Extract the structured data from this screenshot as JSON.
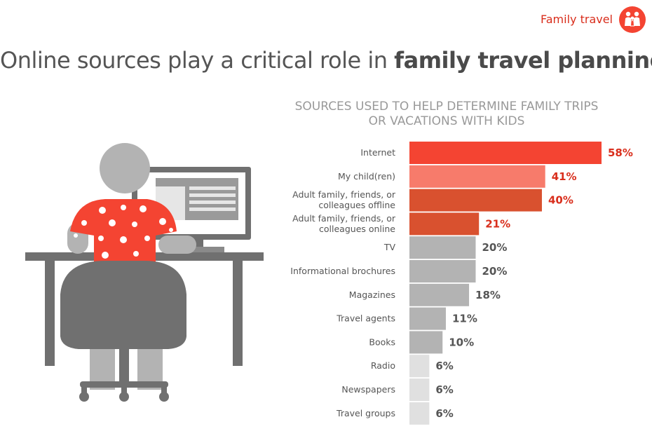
{
  "header": {
    "tag": "Family travel",
    "title_regular": "Online sources play a critical role in ",
    "title_bold": "family travel planning"
  },
  "colors": {
    "accent": "#f44432",
    "light_red": "#f77b6b",
    "dark_red": "#d9512f",
    "gray": "#b3b3b3",
    "light_gray": "#e0e0e0",
    "value_red": "#d92e1c",
    "value_gray": "#555555"
  },
  "icons": {
    "tag_icon": "family-icon",
    "illustration": "person-at-computer-illustration"
  },
  "chart_data": {
    "type": "bar",
    "orientation": "horizontal",
    "title": "SOURCES USED TO HELP DETERMINE FAMILY TRIPS OR VACATIONS WITH KIDS",
    "title_lines": [
      "SOURCES USED TO HELP DETERMINE FAMILY TRIPS",
      "OR VACATIONS WITH KIDS"
    ],
    "xlim": [
      0,
      58
    ],
    "grid": false,
    "legend": "none",
    "unit": "%",
    "categories": [
      [
        "Internet"
      ],
      [
        "My child(ren)"
      ],
      [
        "Adult family, friends, or",
        "colleagues offline"
      ],
      [
        "Adult family, friends, or",
        "colleagues online"
      ],
      [
        "TV"
      ],
      [
        "Informational brochures"
      ],
      [
        "Magazines"
      ],
      [
        "Travel agents"
      ],
      [
        "Books"
      ],
      [
        "Radio"
      ],
      [
        "Newspapers"
      ],
      [
        "Travel groups"
      ]
    ],
    "values": [
      58,
      41,
      40,
      21,
      20,
      20,
      18,
      11,
      10,
      6,
      6,
      6
    ],
    "value_labels": [
      "58%",
      "41%",
      "40%",
      "21%",
      "20%",
      "20%",
      "18%",
      "11%",
      "10%",
      "6%",
      "6%",
      "6%"
    ],
    "bar_colors": [
      "#f44432",
      "#f77b6b",
      "#d9512f",
      "#d9512f",
      "#b3b3b3",
      "#b3b3b3",
      "#b3b3b3",
      "#b3b3b3",
      "#b3b3b3",
      "#e0e0e0",
      "#e0e0e0",
      "#e0e0e0"
    ],
    "value_colors": [
      "#d92e1c",
      "#d92e1c",
      "#d92e1c",
      "#d92e1c",
      "#555555",
      "#555555",
      "#555555",
      "#555555",
      "#555555",
      "#555555",
      "#555555",
      "#555555"
    ]
  }
}
